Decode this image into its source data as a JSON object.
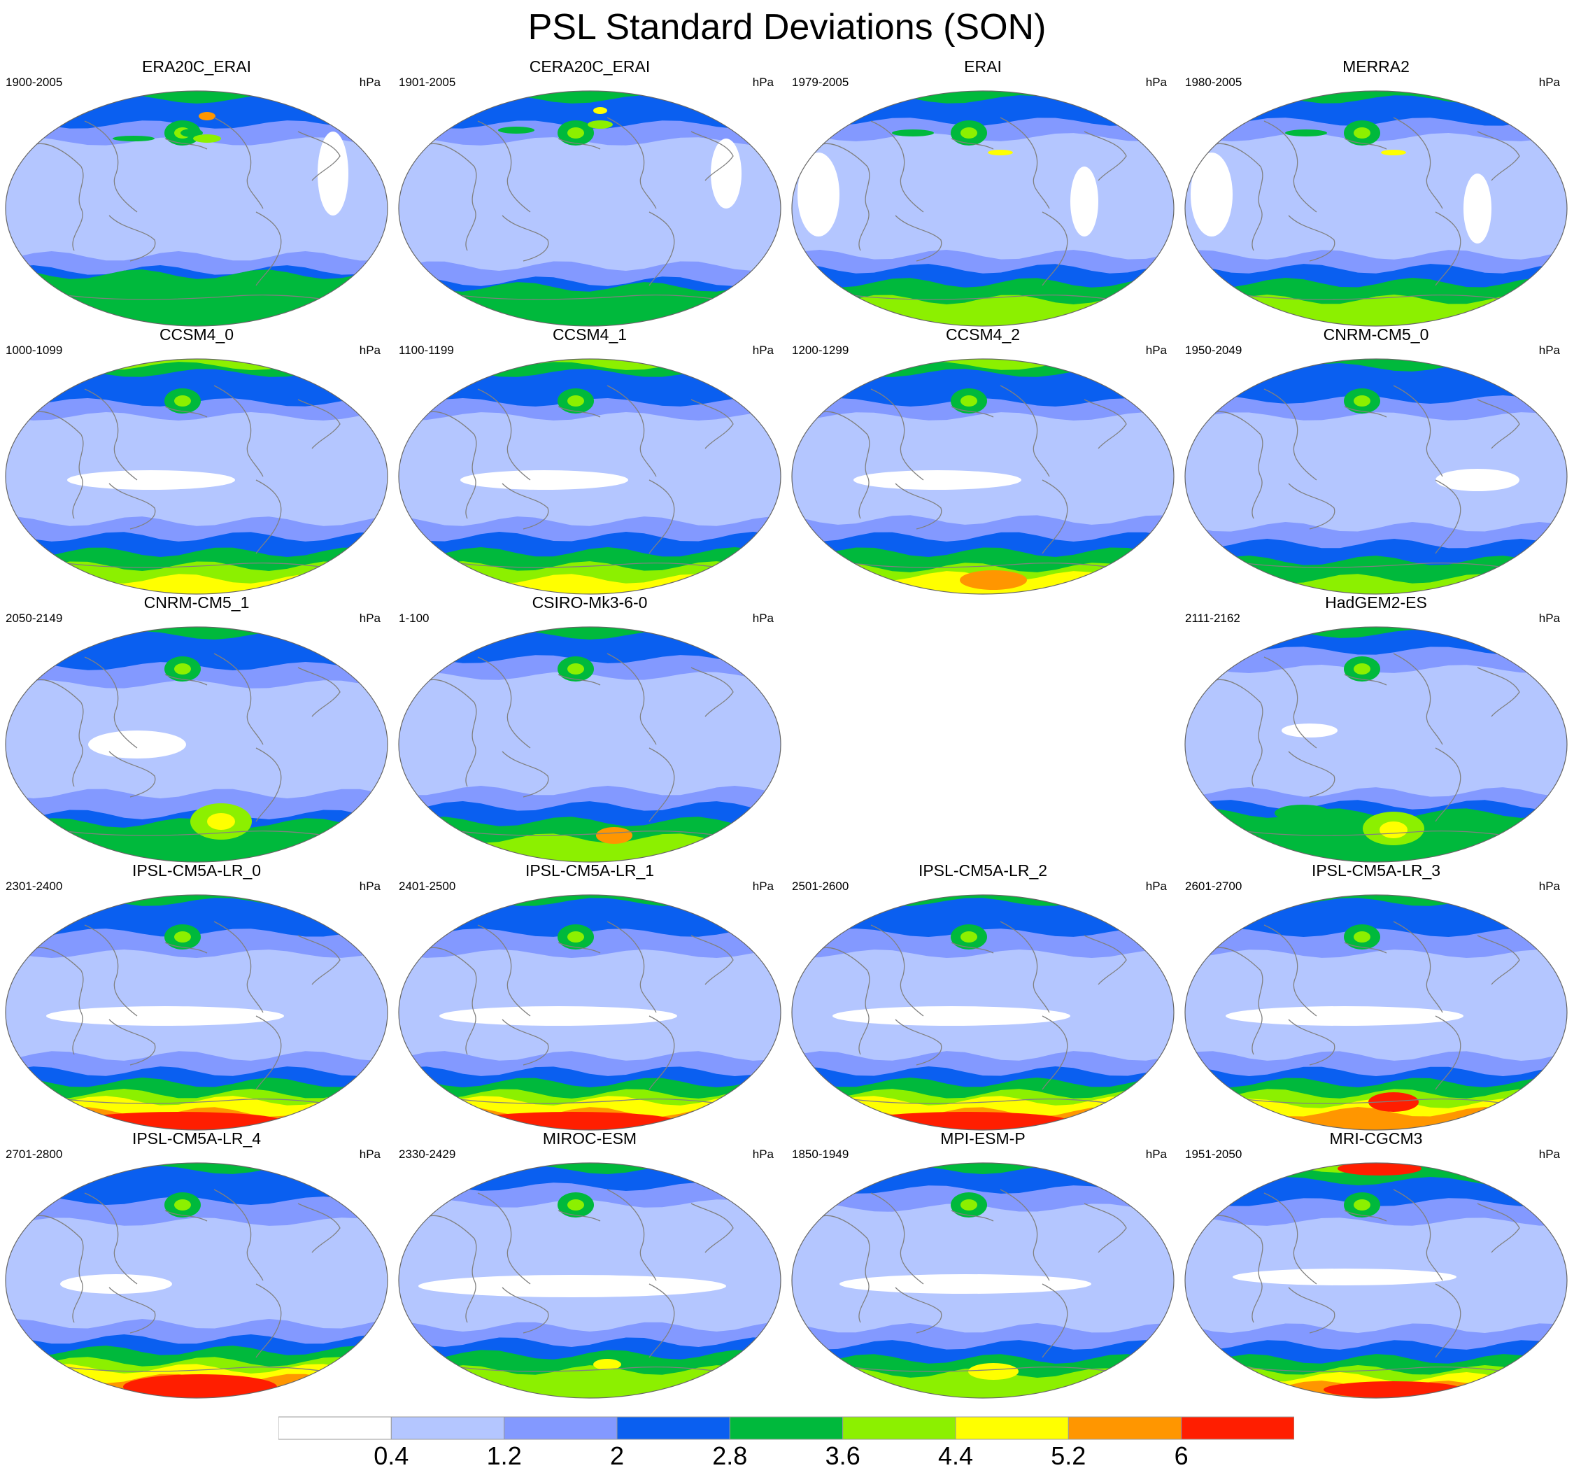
{
  "title": "PSL Standard Deviations (SON)",
  "units": "hPa",
  "colors": {
    "levels": [
      "#ffffff",
      "#b4c6ff",
      "#8399ff",
      "#0a5ff0",
      "#00b93c",
      "#8cf000",
      "#ffff00",
      "#ff9600",
      "#ff1e00"
    ],
    "coast": "#808080",
    "outline": "#666666"
  },
  "colorbar": {
    "labels": [
      "0.4",
      "1.2",
      "2",
      "2.8",
      "3.6",
      "4.4",
      "5.2",
      "6"
    ]
  },
  "panels": [
    {
      "name": "ERA20C_ERAI",
      "period": "1900-2005",
      "style": "obs_era20c"
    },
    {
      "name": "CERA20C_ERAI",
      "period": "1901-2005",
      "style": "obs_cera"
    },
    {
      "name": "ERAI",
      "period": "1979-2005",
      "style": "obs_erai"
    },
    {
      "name": "MERRA2",
      "period": "1980-2005",
      "style": "obs_merra"
    },
    {
      "name": "CCSM4_0",
      "period": "1000-1099",
      "style": "ccsm"
    },
    {
      "name": "CCSM4_1",
      "period": "1100-1199",
      "style": "ccsm"
    },
    {
      "name": "CCSM4_2",
      "period": "1200-1299",
      "style": "ccsm2"
    },
    {
      "name": "CNRM-CM5_0",
      "period": "1950-2049",
      "style": "cnrm"
    },
    {
      "name": "CNRM-CM5_1",
      "period": "2050-2149",
      "style": "cnrm1"
    },
    {
      "name": "CSIRO-Mk3-6-0",
      "period": "1-100",
      "style": "csiro"
    },
    null,
    {
      "name": "HadGEM2-ES",
      "period": "2111-2162",
      "style": "hadgem"
    },
    {
      "name": "IPSL-CM5A-LR_0",
      "period": "2301-2400",
      "style": "ipsl"
    },
    {
      "name": "IPSL-CM5A-LR_1",
      "period": "2401-2500",
      "style": "ipsl"
    },
    {
      "name": "IPSL-CM5A-LR_2",
      "period": "2501-2600",
      "style": "ipsl"
    },
    {
      "name": "IPSL-CM5A-LR_3",
      "period": "2601-2700",
      "style": "ipsl3"
    },
    {
      "name": "IPSL-CM5A-LR_4",
      "period": "2701-2800",
      "style": "ipsl4"
    },
    {
      "name": "MIROC-ESM",
      "period": "2330-2429",
      "style": "miroc"
    },
    {
      "name": "MPI-ESM-P",
      "period": "1850-1949",
      "style": "mpi"
    },
    {
      "name": "MRI-CGCM3",
      "period": "1951-2050",
      "style": "mri"
    }
  ]
}
